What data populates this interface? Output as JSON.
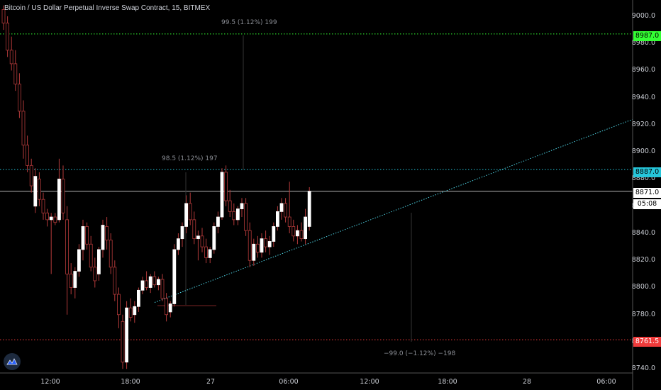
{
  "header": {
    "title": "Bitcoin / US Dollar Perpetual Inverse Swap Contract, 15, BITMEX"
  },
  "price_axis": {
    "ticks": [
      "9000.0",
      "8980.0",
      "8960.0",
      "8940.0",
      "8920.0",
      "8900.0",
      "8880.0",
      "8860.0",
      "8840.0",
      "8820.0",
      "8800.0",
      "8780.0",
      "8760.0",
      "8740.0"
    ]
  },
  "time_axis": {
    "ticks": [
      "12:00",
      "18:00",
      "27",
      "06:00",
      "12:00",
      "18:00",
      "28",
      "06:00"
    ]
  },
  "price_tags": {
    "top_level": "8987.0",
    "upper_level": "8887.0",
    "current_price": "8871.0",
    "countdown": "05:08",
    "lower_level": "8761.5"
  },
  "measurements": {
    "top": "99.5 (1.12%) 199",
    "middle": "98.5 (1.12%) 197",
    "bottom": "−99.0 (−1.12%) −198"
  },
  "colors": {
    "top_level": "#33ff33",
    "upper_level": "#26c6da",
    "lower_level": "#ef3b3b",
    "trendline": "#4dd0e1",
    "current_price": "#ffffff",
    "candle_up": "#ffffff",
    "candle_down": "#000000",
    "wick": "#b33a3a"
  },
  "icons": {
    "logo": "tradingview-logo-icon"
  },
  "chart_data": {
    "type": "candlestick",
    "title": "Bitcoin / US Dollar Perpetual Inverse Swap Contract, 15, BITMEX",
    "ylim": [
      8737,
      9012
    ],
    "horizontal_levels": [
      8987.0,
      8887.0,
      8871.0,
      8761.5
    ],
    "trendline": {
      "from": [
        8789.0
      ],
      "to": [
        8924.0
      ]
    },
    "candles": [
      [
        9005,
        9008,
        8990,
        8995
      ],
      [
        8995,
        9000,
        8970,
        8975
      ],
      [
        8975,
        8985,
        8960,
        8965
      ],
      [
        8965,
        8975,
        8945,
        8950
      ],
      [
        8950,
        8958,
        8925,
        8930
      ],
      [
        8930,
        8938,
        8895,
        8905
      ],
      [
        8905,
        8912,
        8885,
        8890
      ],
      [
        8890,
        8895,
        8870,
        8875
      ],
      [
        8860,
        8888,
        8855,
        8882
      ],
      [
        8880,
        8885,
        8860,
        8865
      ],
      [
        8865,
        8870,
        8850,
        8855
      ],
      [
        8855,
        8858,
        8845,
        8850
      ],
      [
        8850,
        8855,
        8810,
        8852
      ],
      [
        8852,
        8855,
        8846,
        8848
      ],
      [
        8850,
        8895,
        8848,
        8880
      ],
      [
        8880,
        8890,
        8850,
        8855
      ],
      [
        8850,
        8860,
        8780,
        8810
      ],
      [
        8810,
        8818,
        8795,
        8800
      ],
      [
        8800,
        8815,
        8792,
        8812
      ],
      [
        8812,
        8832,
        8808,
        8828
      ],
      [
        8828,
        8850,
        8820,
        8845
      ],
      [
        8845,
        8848,
        8828,
        8832
      ],
      [
        8832,
        8838,
        8812,
        8815
      ],
      [
        8815,
        8822,
        8800,
        8805
      ],
      [
        8810,
        8830,
        8805,
        8828
      ],
      [
        8828,
        8850,
        8822,
        8846
      ],
      [
        8845,
        8852,
        8828,
        8835
      ],
      [
        8835,
        8840,
        8810,
        8815
      ],
      [
        8815,
        8820,
        8790,
        8795
      ],
      [
        8795,
        8800,
        8770,
        8780
      ],
      [
        8775,
        8780,
        8740,
        8745
      ],
      [
        8745,
        8790,
        8740,
        8785
      ],
      [
        8785,
        8792,
        8775,
        8778
      ],
      [
        8780,
        8790,
        8774,
        8786
      ],
      [
        8786,
        8800,
        8782,
        8798
      ],
      [
        8798,
        8808,
        8795,
        8805
      ],
      [
        8805,
        8812,
        8798,
        8800
      ],
      [
        8800,
        8810,
        8796,
        8808
      ],
      [
        8808,
        8812,
        8800,
        8802
      ],
      [
        8802,
        8808,
        8798,
        8806
      ],
      [
        8806,
        8810,
        8790,
        8792
      ],
      [
        8792,
        8796,
        8775,
        8780
      ],
      [
        8782,
        8790,
        8778,
        8788
      ],
      [
        8788,
        8832,
        8786,
        8828
      ],
      [
        8828,
        8840,
        8824,
        8836
      ],
      [
        8836,
        8848,
        8830,
        8845
      ],
      [
        8845,
        8868,
        8840,
        8862
      ],
      [
        8862,
        8870,
        8846,
        8850
      ],
      [
        8850,
        8856,
        8832,
        8836
      ],
      [
        8836,
        8842,
        8820,
        8838
      ],
      [
        8838,
        8844,
        8826,
        8830
      ],
      [
        8830,
        8836,
        8818,
        8822
      ],
      [
        8822,
        8830,
        8818,
        8828
      ],
      [
        8828,
        8848,
        8825,
        8845
      ],
      [
        8845,
        8856,
        8840,
        8852
      ],
      [
        8852,
        8888,
        8850,
        8885
      ],
      [
        8885,
        8890,
        8860,
        8864
      ],
      [
        8864,
        8872,
        8852,
        8856
      ],
      [
        8856,
        8862,
        8846,
        8850
      ],
      [
        8850,
        8860,
        8846,
        8858
      ],
      [
        8858,
        8866,
        8852,
        8862
      ],
      [
        8862,
        8866,
        8838,
        8842
      ],
      [
        8842,
        8848,
        8815,
        8820
      ],
      [
        8820,
        8836,
        8816,
        8832
      ],
      [
        8832,
        8838,
        8822,
        8826
      ],
      [
        8826,
        8840,
        8822,
        8836
      ],
      [
        8836,
        8842,
        8826,
        8830
      ],
      [
        8830,
        8838,
        8824,
        8834
      ],
      [
        8834,
        8848,
        8830,
        8845
      ],
      [
        8845,
        8860,
        8842,
        8856
      ],
      [
        8856,
        8866,
        8850,
        8862
      ],
      [
        8862,
        8866,
        8848,
        8852
      ],
      [
        8852,
        8878,
        8840,
        8845
      ],
      [
        8845,
        8850,
        8834,
        8838
      ],
      [
        8838,
        8846,
        8832,
        8842
      ],
      [
        8842,
        8848,
        8834,
        8836
      ],
      [
        8836,
        8858,
        8832,
        8852
      ],
      [
        8845,
        8874,
        8842,
        8871
      ]
    ]
  }
}
